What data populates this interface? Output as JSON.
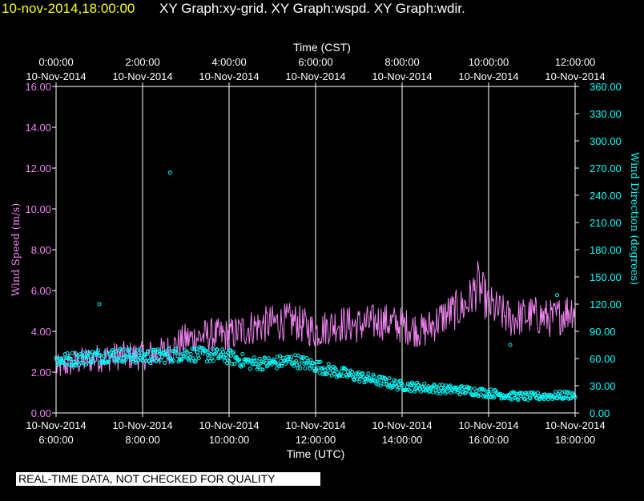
{
  "header": {
    "date": "10-nov-2014,18:00:00",
    "graphs": "XY Graph:xy-grid.  XY Graph:wspd.  XY Graph:wdir."
  },
  "notice": "REAL-TIME DATA, NOT CHECKED FOR QUALITY",
  "colors": {
    "background": "#000000",
    "axis": "#ffffff",
    "wind_speed": "#ee82ee",
    "wind_direction": "#00ffff",
    "left_tick_labels": "#ee82ee",
    "right_tick_labels": "#00ffff"
  },
  "chart_data": {
    "type": "line",
    "grid": "vertical",
    "top_axis": {
      "title": "Time (CST)",
      "ticks": [
        [
          "0:00:00",
          "10-Nov-2014"
        ],
        [
          "2:00:00",
          "10-Nov-2014"
        ],
        [
          "4:00:00",
          "10-Nov-2014"
        ],
        [
          "6:00:00",
          "10-Nov-2014"
        ],
        [
          "8:00:00",
          "10-Nov-2014"
        ],
        [
          "10:00:00",
          "10-Nov-2014"
        ],
        [
          "12:00:00",
          "10-Nov-2014"
        ]
      ]
    },
    "bottom_axis": {
      "title": "Time (UTC)",
      "range": [
        "2014-11-10 06:00",
        "2014-11-10 18:00"
      ],
      "ticks": [
        [
          "10-Nov-2014",
          "6:00:00"
        ],
        [
          "10-Nov-2014",
          "8:00:00"
        ],
        [
          "10-Nov-2014",
          "10:00:00"
        ],
        [
          "10-Nov-2014",
          "12:00:00"
        ],
        [
          "10-Nov-2014",
          "14:00:00"
        ],
        [
          "10-Nov-2014",
          "16:00:00"
        ],
        [
          "10-Nov-2014",
          "18:00:00"
        ]
      ]
    },
    "left_axis": {
      "title": "Wind Speed (m/s)",
      "range": [
        0,
        16
      ],
      "ticks": [
        "0.00",
        "2.00",
        "4.00",
        "6.00",
        "8.00",
        "10.00",
        "12.00",
        "14.00",
        "16.00"
      ]
    },
    "right_axis": {
      "title": "Wind Direction (degrees)",
      "range": [
        0,
        360
      ],
      "ticks": [
        "0.00",
        "30.00",
        "60.00",
        "90.00",
        "120.00",
        "150.00",
        "180.00",
        "210.00",
        "240.00",
        "270.00",
        "300.00",
        "330.00",
        "360.00"
      ]
    },
    "series": [
      {
        "name": "Wind Speed",
        "style": "line",
        "axis": "left",
        "x": [
          "06:00",
          "06:30",
          "07:00",
          "07:30",
          "08:00",
          "08:30",
          "09:00",
          "09:30",
          "10:00",
          "10:30",
          "11:00",
          "11:30",
          "12:00",
          "12:30",
          "13:00",
          "13:30",
          "14:00",
          "14:30",
          "15:00",
          "15:30",
          "15:45",
          "16:00",
          "16:30",
          "17:00",
          "17:30",
          "18:00"
        ],
        "values": [
          2.2,
          2.5,
          2.7,
          2.8,
          2.8,
          3.0,
          3.6,
          3.8,
          3.8,
          4.2,
          4.4,
          4.5,
          4.0,
          4.4,
          4.3,
          4.5,
          4.3,
          4.0,
          4.8,
          5.3,
          6.3,
          5.3,
          4.6,
          4.8,
          4.6,
          5.2
        ]
      },
      {
        "name": "Wind Direction",
        "style": "markers",
        "axis": "right",
        "x": [
          "06:00",
          "06:30",
          "07:00",
          "07:30",
          "08:00",
          "08:30",
          "09:00",
          "09:30",
          "10:00",
          "10:30",
          "11:00",
          "11:30",
          "12:00",
          "12:30",
          "13:00",
          "13:30",
          "14:00",
          "14:30",
          "15:00",
          "15:30",
          "16:00",
          "16:30",
          "17:00",
          "17:30",
          "18:00"
        ],
        "values": [
          58,
          60,
          63,
          64,
          62,
          63,
          65,
          64,
          62,
          55,
          55,
          58,
          52,
          45,
          40,
          35,
          30,
          28,
          26,
          25,
          22,
          19,
          18,
          19,
          20
        ]
      }
    ],
    "outliers": [
      {
        "series": "Wind Direction",
        "x": "08:38",
        "value": 265
      },
      {
        "series": "Wind Direction",
        "x": "07:00",
        "value": 120
      },
      {
        "series": "Wind Direction",
        "x": "16:30",
        "value": 75
      },
      {
        "series": "Wind Direction",
        "x": "17:35",
        "value": 130
      }
    ]
  }
}
